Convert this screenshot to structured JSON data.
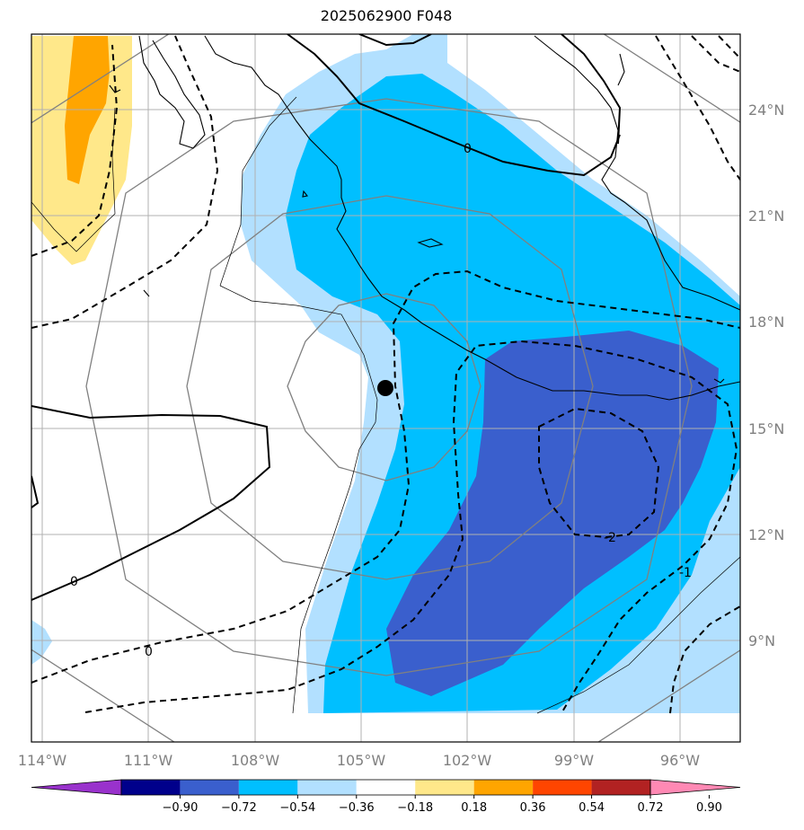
{
  "title": "2025062900 F048",
  "map": {
    "lon_ticks": [
      "114°W",
      "111°W",
      "108°W",
      "105°W",
      "102°W",
      "99°W",
      "96°W"
    ],
    "lat_ticks": [
      "24°N",
      "21°N",
      "18°N",
      "15°N",
      "12°N",
      "9°N"
    ],
    "center_marker": {
      "lon": -104.3,
      "lat": 16.2
    },
    "contour_labels": [
      "0",
      "0",
      "0",
      "-2",
      "-1"
    ]
  },
  "colorbar": {
    "colors": [
      "#9932cc",
      "#00008b",
      "#3a5fcd",
      "#00bfff",
      "#b2e0ff",
      "#ffffff",
      "#ffe88a",
      "#ffa500",
      "#ff4500",
      "#b22222",
      "#ff89b4"
    ],
    "labels": [
      "−0.90",
      "−0.72",
      "−0.54",
      "−0.36",
      "−0.18",
      "0.18",
      "0.36",
      "0.54",
      "0.72",
      "0.90"
    ]
  }
}
